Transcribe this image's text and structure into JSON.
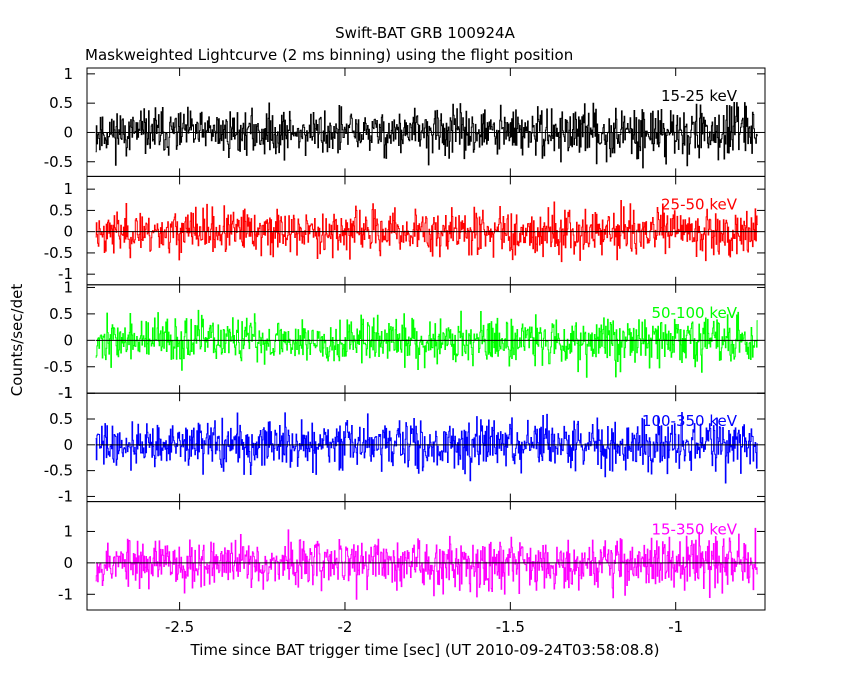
{
  "chart_data": {
    "type": "line",
    "title": "Swift-BAT GRB 100924A",
    "subtitle": "Maskweighted Lightcurve (2 ms binning) using the flight position",
    "xlabel": "Time since BAT trigger time [sec] (UT 2010-09-24T03:58:08.8)",
    "ylabel": "Counts/sec/det",
    "xlim": [
      -2.78,
      -0.73
    ],
    "x_ticks": [
      "-2.5",
      "-2",
      "-1.5",
      "-1"
    ],
    "x_tick_values": [
      -2.5,
      -2.0,
      -1.5,
      -1.0
    ],
    "x_data_range": [
      -2.754,
      -0.752
    ],
    "bin_width_sec": 0.002,
    "panels": [
      {
        "label": "15-25 keV",
        "color": "#000000",
        "ylim": [
          -0.75,
          1.1
        ],
        "yticks": [
          "-0.5",
          "0",
          "0.5",
          "1"
        ],
        "ytick_values": [
          -0.5,
          0,
          0.5,
          1
        ],
        "amplitude": 0.36,
        "seed": 11
      },
      {
        "label": "25-50 keV",
        "color": "#ff0000",
        "ylim": [
          -1.25,
          1.3
        ],
        "yticks": [
          "-1",
          "-0.5",
          "0",
          "0.5",
          "1"
        ],
        "ytick_values": [
          -1,
          -0.5,
          0,
          0.5,
          1
        ],
        "amplitude": 0.48,
        "seed": 23
      },
      {
        "label": "50-100 keV",
        "color": "#00ff00",
        "ylim": [
          -1.0,
          1.05
        ],
        "yticks": [
          "-1",
          "-0.5",
          "0",
          "0.5",
          "1"
        ],
        "ytick_values": [
          -1,
          -0.5,
          0,
          0.5,
          1
        ],
        "amplitude": 0.4,
        "seed": 37
      },
      {
        "label": "100-350 keV",
        "color": "#0000ff",
        "ylim": [
          -1.1,
          1.0
        ],
        "yticks": [
          "-1",
          "-0.5",
          "0",
          "0.5",
          "1"
        ],
        "ytick_values": [
          -1,
          -0.5,
          0,
          0.5,
          1
        ],
        "amplitude": 0.42,
        "seed": 41
      },
      {
        "label": "15-350 keV",
        "color": "#ff00ff",
        "ylim": [
          -1.5,
          1.95
        ],
        "yticks": [
          "-1",
          "0",
          "1"
        ],
        "ytick_values": [
          -1,
          0,
          1
        ],
        "amplitude": 0.72,
        "seed": 53
      }
    ]
  }
}
